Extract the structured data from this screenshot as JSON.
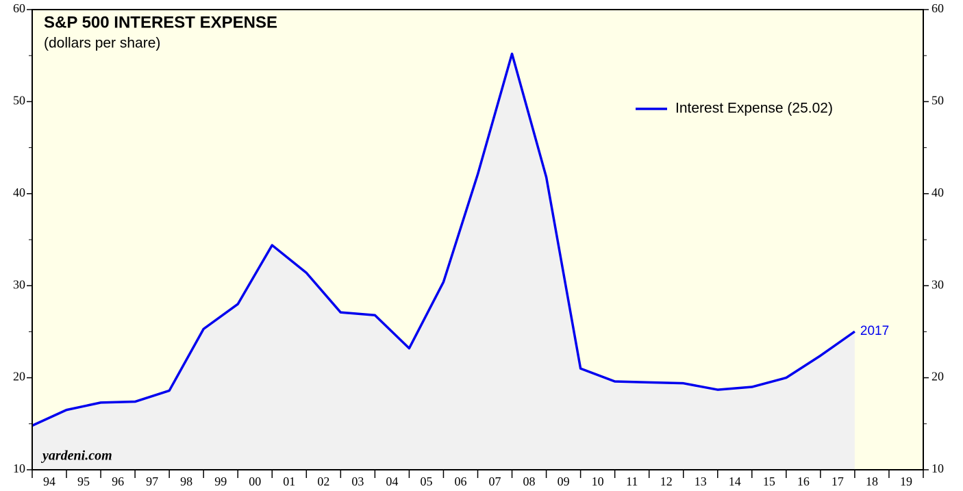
{
  "chart_data": {
    "type": "area-line",
    "title": "S&P 500 INTEREST EXPENSE",
    "subtitle": "(dollars per share)",
    "watermark": "yardeni.com",
    "x": [
      1993,
      1994,
      1995,
      1996,
      1997,
      1998,
      1999,
      2000,
      2001,
      2002,
      2003,
      2004,
      2005,
      2006,
      2007,
      2008,
      2009,
      2010,
      2011,
      2012,
      2013,
      2014,
      2015,
      2016,
      2017
    ],
    "series": [
      {
        "name": "Interest Expense (25.02)",
        "color": "#0000ee",
        "values": [
          14.8,
          16.5,
          17.3,
          17.4,
          18.6,
          25.3,
          28.0,
          34.4,
          31.4,
          27.1,
          26.8,
          23.2,
          30.4,
          42.1,
          55.2,
          41.8,
          21.0,
          19.6,
          19.5,
          19.4,
          18.7,
          19.0,
          20.0,
          22.4,
          25.02
        ]
      }
    ],
    "annotation": {
      "text": "2017",
      "x": 2017,
      "y": 25.02
    },
    "xlim": [
      1993,
      2019
    ],
    "xtick_labels": [
      "94",
      "95",
      "96",
      "97",
      "98",
      "99",
      "00",
      "01",
      "02",
      "03",
      "04",
      "05",
      "06",
      "07",
      "08",
      "09",
      "10",
      "11",
      "12",
      "13",
      "14",
      "15",
      "16",
      "17",
      "18",
      "19"
    ],
    "ylim": [
      10,
      60
    ],
    "yticks": [
      10,
      20,
      30,
      40,
      50,
      60
    ],
    "y2lim": [
      10,
      60
    ],
    "y2ticks": [
      10,
      20,
      30,
      40,
      50,
      60
    ],
    "area_color": "#f1f1f1",
    "background": "#ffffe8",
    "legend": "upper right"
  }
}
